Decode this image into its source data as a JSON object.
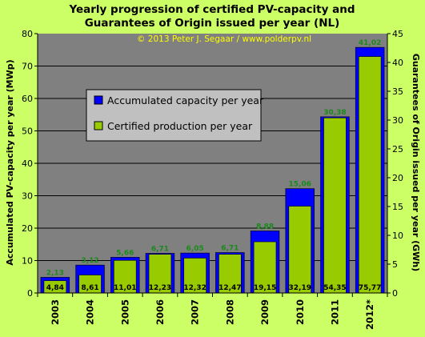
{
  "chart_data": {
    "type": "bar",
    "title_line1": "Yearly progression  of certified  PV-capacity and",
    "title_line2": "Guarantees  of Origin issued per year (NL)",
    "copyright": "© 2013 Peter J. Segaar / www.polderpv.nl",
    "ylabel_left": "Accumulated PV-capacity per year (MWp)",
    "ylabel_right": "Guarantees of Origin issued per year (GWh)",
    "ylim_left": [
      0,
      80
    ],
    "ylim_right": [
      0,
      45
    ],
    "yticks_left": [
      "0",
      "10",
      "20",
      "30",
      "40",
      "50",
      "60",
      "70",
      "80"
    ],
    "yticks_right": [
      "0",
      "5",
      "10",
      "15",
      "20",
      "25",
      "30",
      "35",
      "40",
      "45"
    ],
    "categories": [
      "2003",
      "2004",
      "2005",
      "2006",
      "2007",
      "2008",
      "2009",
      "2010",
      "2011",
      "2012*"
    ],
    "series": [
      {
        "name": "Accumulated capacity per year",
        "axis": "left",
        "color": "#0000ff",
        "values": [
          4.84,
          8.61,
          11.01,
          12.23,
          12.32,
          12.47,
          19.15,
          32.19,
          54.35,
          75.77
        ],
        "labels": [
          "4,84",
          "8,61",
          "11,01",
          "12,23",
          "12,32",
          "12,47",
          "19,15",
          "32,19",
          "54,35",
          "75,77"
        ]
      },
      {
        "name": "Certified production per year",
        "axis": "right",
        "color": "#99cc00",
        "values": [
          2.13,
          3.12,
          5.66,
          6.71,
          6.05,
          6.71,
          8.88,
          15.06,
          30.38,
          41.02
        ],
        "labels": [
          "2,13",
          "3,12",
          "5,66",
          "6,71",
          "6,05",
          "6,71",
          "8,88",
          "15,06",
          "30,38",
          "41,02"
        ]
      }
    ],
    "plot_background": "#808080",
    "page_background": "#ccff66",
    "legend_placement": "upper-left inside plot"
  }
}
